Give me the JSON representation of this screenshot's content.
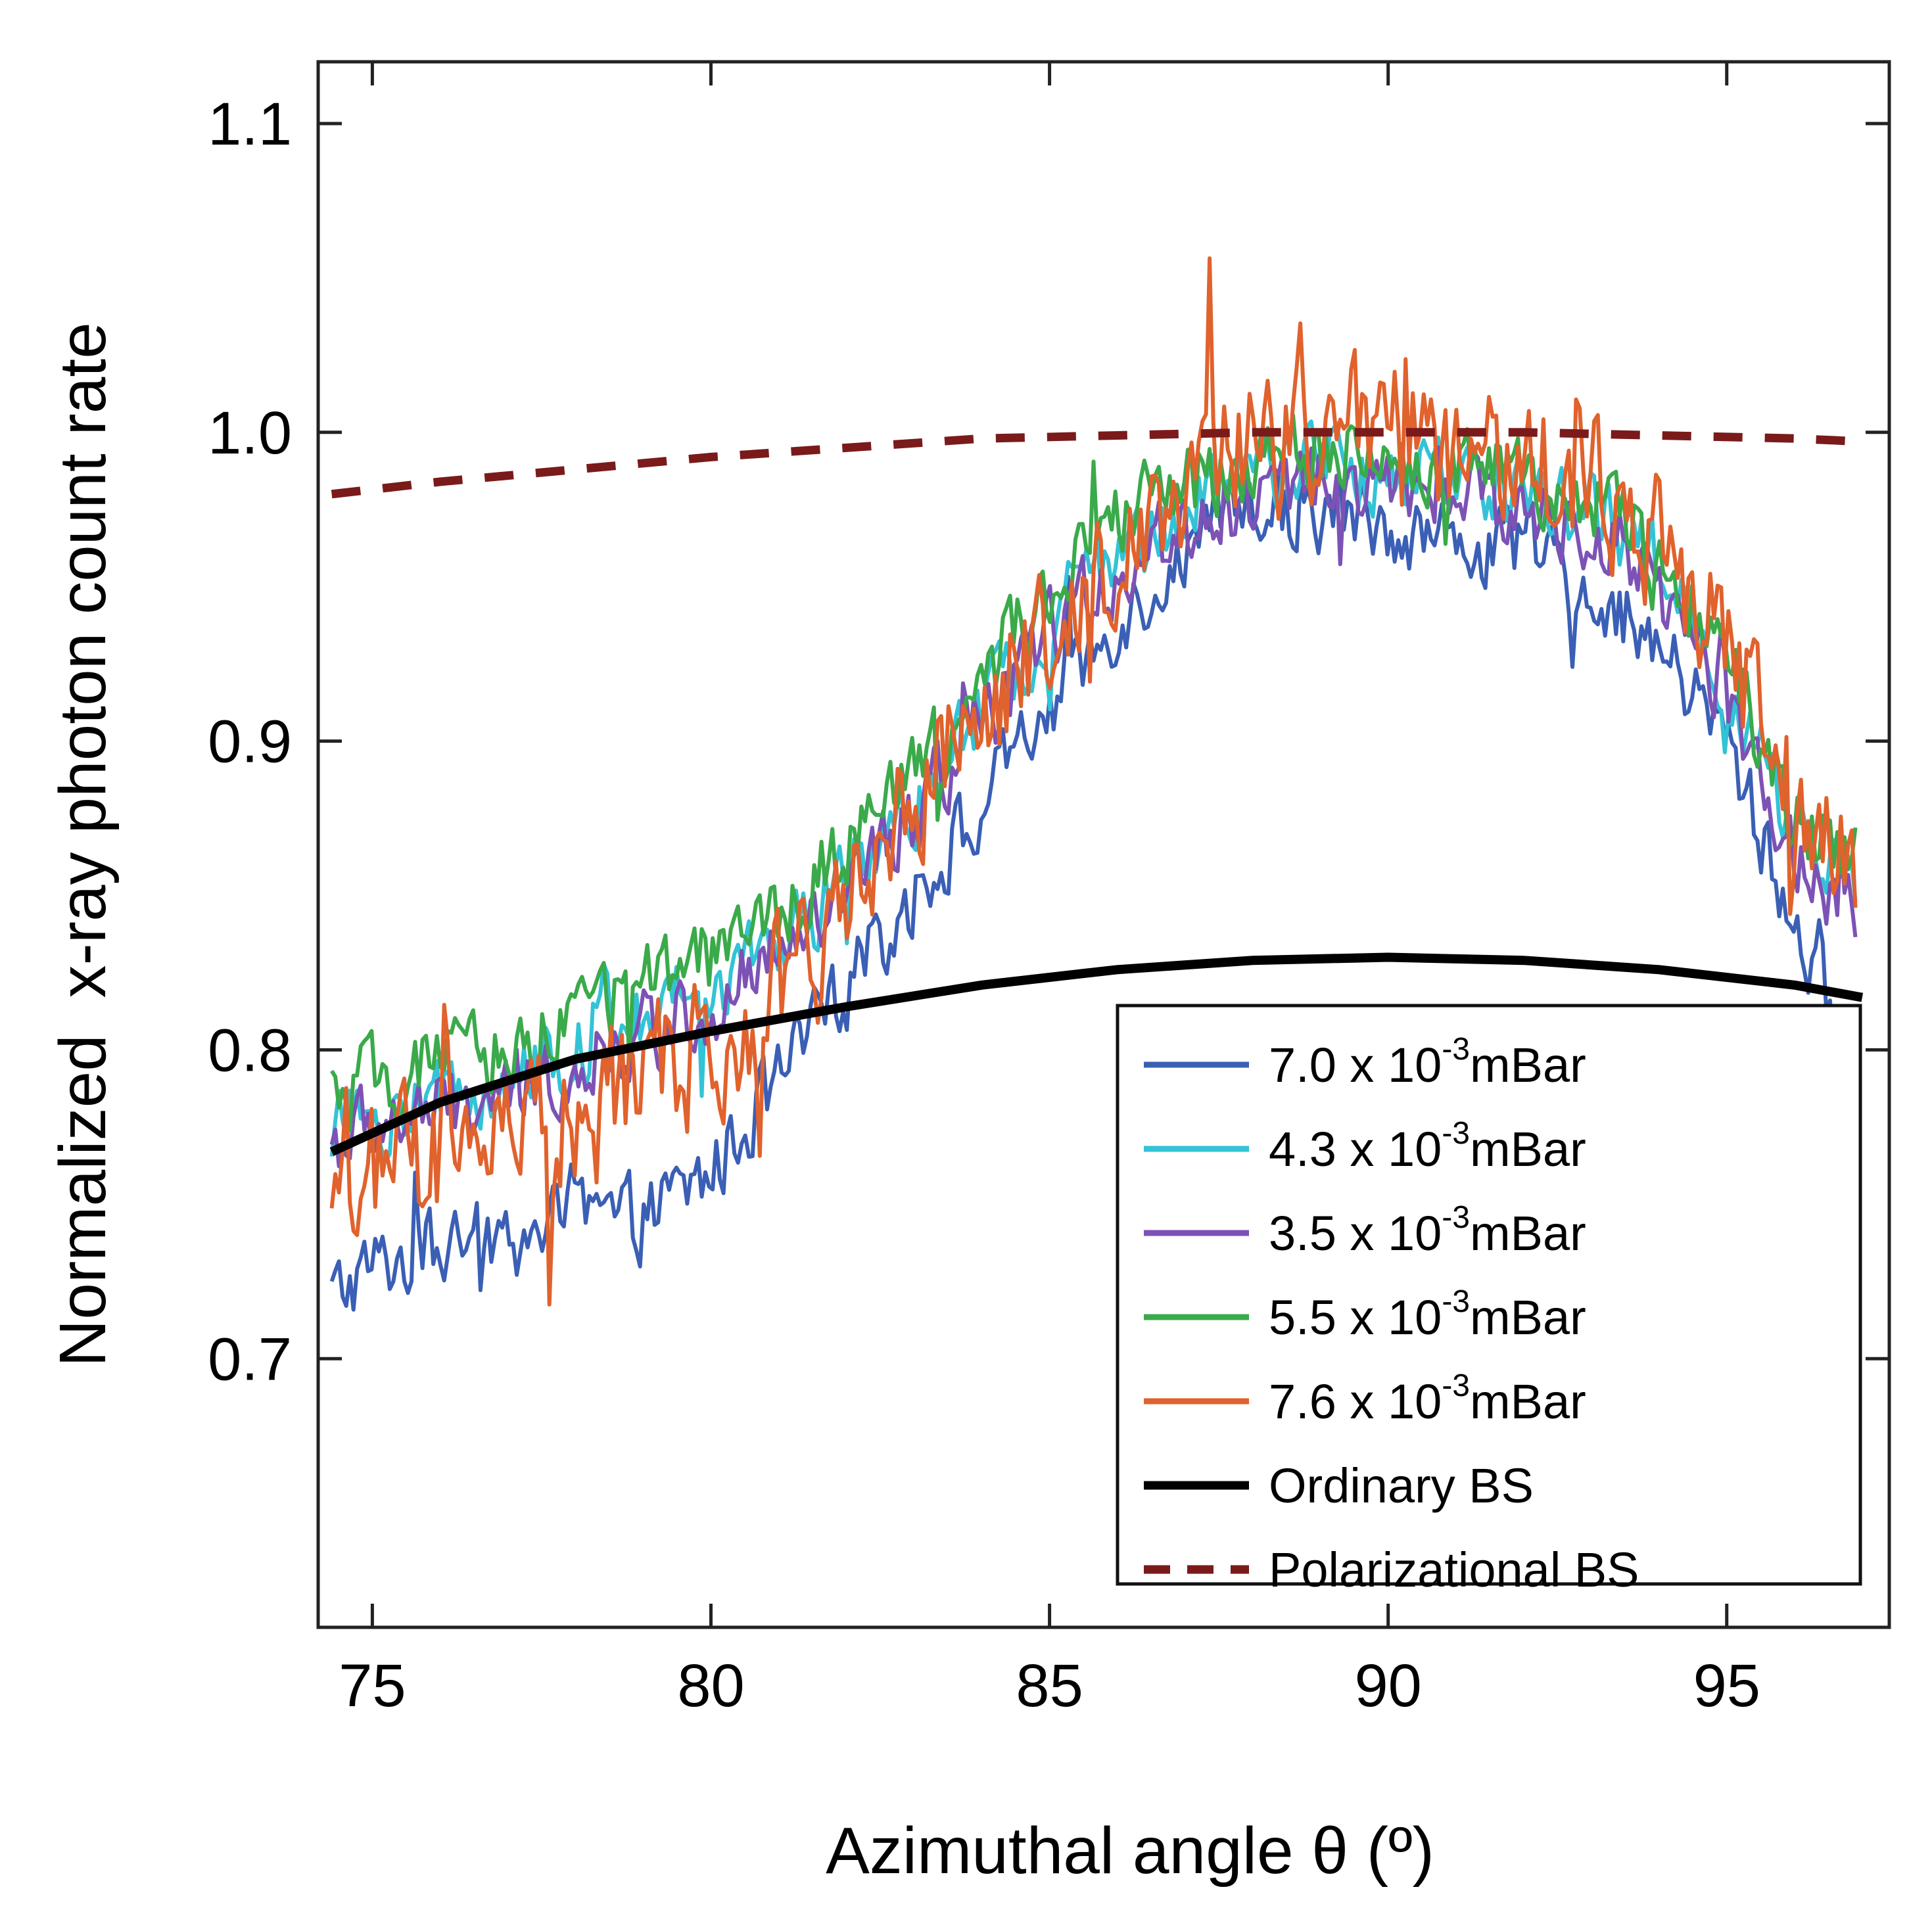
{
  "chart_data": {
    "type": "line",
    "xlabel": "Azimuthal angle θ (º)",
    "ylabel": "Normalized  x-ray photon count rate",
    "xlim": [
      74.2,
      97.4
    ],
    "ylim": [
      0.613,
      1.12
    ],
    "x_ticks": [
      "75",
      "80",
      "85",
      "90",
      "95"
    ],
    "y_ticks": [
      "0.7",
      "0.8",
      "0.9",
      "1.0",
      "1.1"
    ],
    "grid": false,
    "legend_position": "bottom-right",
    "series": [
      {
        "name": "7.0 x 10-3mBar",
        "legend_main": "7.0 x 10",
        "legend_exp": "-3",
        "legend_unit": "mBar",
        "color": "#3a5fb5",
        "style": "noisy",
        "x": [
          74.4,
          75.0,
          76.0,
          77.0,
          78.0,
          79.0,
          80.0,
          81.0,
          82.0,
          83.0,
          84.0,
          85.0,
          86.0,
          87.0,
          88.0,
          89.0,
          90.0,
          91.0,
          92.0,
          93.0,
          94.0,
          95.0,
          96.0,
          96.9
        ],
        "y": [
          0.72,
          0.73,
          0.735,
          0.74,
          0.745,
          0.745,
          0.76,
          0.79,
          0.82,
          0.85,
          0.88,
          0.91,
          0.94,
          0.96,
          0.975,
          0.975,
          0.97,
          0.965,
          0.96,
          0.95,
          0.93,
          0.9,
          0.84,
          0.79
        ]
      },
      {
        "name": "4.3 x 10-3mBar",
        "legend_main": "4.3 x 10",
        "legend_exp": "-3",
        "legend_unit": "mBar",
        "color": "#33c3d6",
        "style": "noisy",
        "x": [
          74.4,
          75.0,
          76.0,
          77.0,
          78.0,
          79.0,
          80.0,
          81.0,
          82.0,
          83.0,
          84.0,
          85.0,
          86.0,
          87.0,
          88.0,
          89.0,
          90.0,
          91.0,
          92.0,
          93.0,
          94.0,
          95.0,
          96.0,
          96.9
        ],
        "y": [
          0.775,
          0.78,
          0.785,
          0.79,
          0.8,
          0.81,
          0.82,
          0.835,
          0.855,
          0.88,
          0.91,
          0.94,
          0.96,
          0.975,
          0.985,
          0.99,
          0.985,
          0.985,
          0.98,
          0.975,
          0.955,
          0.92,
          0.87,
          0.85
        ]
      },
      {
        "name": "3.5 x 10-3mBar",
        "legend_main": "3.5 x 10",
        "legend_exp": "-3",
        "legend_unit": "mBar",
        "color": "#7d52b5",
        "style": "noisy",
        "x": [
          74.4,
          75.0,
          76.0,
          77.0,
          78.0,
          79.0,
          80.0,
          81.0,
          82.0,
          83.0,
          84.0,
          85.0,
          86.0,
          87.0,
          88.0,
          89.0,
          90.0,
          91.0,
          92.0,
          93.0,
          94.0,
          95.0,
          96.0,
          96.9
        ],
        "y": [
          0.77,
          0.775,
          0.78,
          0.785,
          0.795,
          0.805,
          0.815,
          0.83,
          0.85,
          0.875,
          0.905,
          0.935,
          0.955,
          0.97,
          0.98,
          0.985,
          0.98,
          0.98,
          0.975,
          0.97,
          0.95,
          0.915,
          0.86,
          0.845
        ]
      },
      {
        "name": "5.5 x 10-3mBar",
        "legend_main": "5.5 x 10",
        "legend_exp": "-3",
        "legend_unit": "mBar",
        "color": "#3aaa4a",
        "style": "noisy",
        "x": [
          74.4,
          75.0,
          76.0,
          77.0,
          78.0,
          79.0,
          80.0,
          81.0,
          82.0,
          83.0,
          84.0,
          85.0,
          86.0,
          87.0,
          88.0,
          89.0,
          90.0,
          91.0,
          92.0,
          93.0,
          94.0,
          95.0,
          96.0,
          96.9
        ],
        "y": [
          0.785,
          0.79,
          0.795,
          0.8,
          0.81,
          0.82,
          0.83,
          0.845,
          0.865,
          0.89,
          0.92,
          0.95,
          0.97,
          0.985,
          0.99,
          0.995,
          0.99,
          0.99,
          0.985,
          0.98,
          0.96,
          0.925,
          0.875,
          0.86
        ]
      },
      {
        "name": "7.6 x 10-3mBar",
        "legend_main": "7.6 x 10",
        "legend_exp": "-3",
        "legend_unit": "mBar",
        "color": "#e0622d",
        "style": "noisy",
        "x": [
          74.4,
          75.0,
          76.0,
          77.0,
          78.0,
          79.0,
          80.0,
          81.0,
          82.0,
          83.0,
          84.0,
          85.0,
          86.0,
          87.0,
          88.0,
          89.0,
          90.0,
          91.0,
          92.0,
          93.0,
          94.0,
          95.0,
          96.0,
          96.9
        ],
        "y": [
          0.76,
          0.76,
          0.765,
          0.77,
          0.78,
          0.79,
          0.8,
          0.82,
          0.85,
          0.88,
          0.91,
          0.94,
          0.965,
          0.985,
          0.995,
          1.0,
          1.0,
          0.995,
          0.99,
          0.985,
          0.965,
          0.93,
          0.88,
          0.85
        ]
      },
      {
        "name": "Ordinary BS",
        "legend_main": "Ordinary BS",
        "color": "#000000",
        "style": "solid",
        "x": [
          74.4,
          76.0,
          78.0,
          80.0,
          82.0,
          84.0,
          86.0,
          88.0,
          90.0,
          92.0,
          94.0,
          96.0,
          97.0
        ],
        "y": [
          0.767,
          0.783,
          0.797,
          0.806,
          0.814,
          0.821,
          0.826,
          0.829,
          0.83,
          0.829,
          0.826,
          0.821,
          0.817
        ]
      },
      {
        "name": "Polarizational BS",
        "legend_main": "Polarizational BS",
        "color": "#7a1a1a",
        "style": "dashed",
        "x": [
          74.4,
          76.0,
          78.0,
          80.0,
          82.0,
          84.0,
          86.0,
          88.0,
          90.0,
          92.0,
          94.0,
          96.0,
          97.0
        ],
        "y": [
          0.98,
          0.984,
          0.988,
          0.992,
          0.995,
          0.998,
          0.999,
          1.0,
          1.0,
          1.0,
          0.999,
          0.998,
          0.997
        ]
      }
    ]
  }
}
